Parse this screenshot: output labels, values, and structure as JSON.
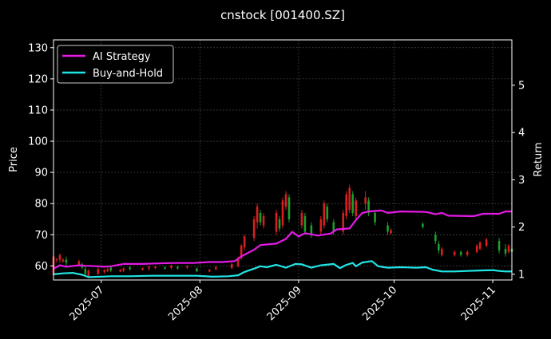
{
  "chart_data": {
    "type": "line",
    "title": "cnstock [001400.SZ]",
    "ylabel": "Price",
    "y2label": "Return",
    "ylim": [
      55.5,
      132.5
    ],
    "y2lim": [
      0.88,
      5.96
    ],
    "yticks": [
      60,
      70,
      80,
      90,
      100,
      110,
      120,
      130
    ],
    "y2ticks": [
      1,
      2,
      3,
      4,
      5
    ],
    "xlim": [
      "2025-06-16",
      "2025-11-07"
    ],
    "xticks": [
      "2025-07",
      "2025-08",
      "2025-09",
      "2025-10",
      "2025-11"
    ],
    "grid": true,
    "legend_position": "upper-left",
    "colors": {
      "background": "#000000",
      "ai_strategy": "#e619e6",
      "buy_and_hold": "#21e5e5",
      "candle_up": "#d62020",
      "candle_down": "#1f9e2c",
      "grid": "#555555"
    },
    "series": [
      {
        "name": "AI Strategy",
        "axis": "right",
        "points": [
          [
            "2025-06-16",
            1.12
          ],
          [
            "2025-06-18",
            1.19
          ],
          [
            "2025-06-20",
            1.16
          ],
          [
            "2025-06-24",
            1.19
          ],
          [
            "2025-06-26",
            1.18
          ],
          [
            "2025-06-30",
            1.17
          ],
          [
            "2025-07-02",
            1.16
          ],
          [
            "2025-07-04",
            1.17
          ],
          [
            "2025-07-08",
            1.22
          ],
          [
            "2025-07-14",
            1.22
          ],
          [
            "2025-07-18",
            1.23
          ],
          [
            "2025-07-24",
            1.24
          ],
          [
            "2025-07-30",
            1.24
          ],
          [
            "2025-08-04",
            1.26
          ],
          [
            "2025-08-08",
            1.26
          ],
          [
            "2025-08-12",
            1.28
          ],
          [
            "2025-08-14",
            1.38
          ],
          [
            "2025-08-18",
            1.52
          ],
          [
            "2025-08-20",
            1.62
          ],
          [
            "2025-08-25",
            1.65
          ],
          [
            "2025-08-28",
            1.75
          ],
          [
            "2025-08-30",
            1.9
          ],
          [
            "2025-09-01",
            1.8
          ],
          [
            "2025-09-03",
            1.87
          ],
          [
            "2025-09-07",
            1.82
          ],
          [
            "2025-09-11",
            1.86
          ],
          [
            "2025-09-13",
            1.95
          ],
          [
            "2025-09-17",
            1.97
          ],
          [
            "2025-09-19",
            2.15
          ],
          [
            "2025-09-21",
            2.3
          ],
          [
            "2025-09-23",
            2.33
          ],
          [
            "2025-09-27",
            2.35
          ],
          [
            "2025-09-29",
            2.3
          ],
          [
            "2025-10-03",
            2.33
          ],
          [
            "2025-10-11",
            2.32
          ],
          [
            "2025-10-14",
            2.27
          ],
          [
            "2025-10-16",
            2.3
          ],
          [
            "2025-10-18",
            2.24
          ],
          [
            "2025-10-26",
            2.23
          ],
          [
            "2025-10-29",
            2.28
          ],
          [
            "2025-11-03",
            2.28
          ],
          [
            "2025-11-05",
            2.33
          ],
          [
            "2025-11-07",
            2.33
          ]
        ]
      },
      {
        "name": "Buy-and-Hold",
        "axis": "right",
        "points": [
          [
            "2025-06-16",
            1.0
          ],
          [
            "2025-06-19",
            1.02
          ],
          [
            "2025-06-22",
            1.03
          ],
          [
            "2025-06-25",
            0.99
          ],
          [
            "2025-06-27",
            0.94
          ],
          [
            "2025-07-01",
            0.95
          ],
          [
            "2025-07-04",
            0.96
          ],
          [
            "2025-07-10",
            0.96
          ],
          [
            "2025-07-17",
            0.97
          ],
          [
            "2025-07-24",
            0.97
          ],
          [
            "2025-07-31",
            0.97
          ],
          [
            "2025-08-05",
            0.95
          ],
          [
            "2025-08-10",
            0.96
          ],
          [
            "2025-08-13",
            0.98
          ],
          [
            "2025-08-15",
            1.05
          ],
          [
            "2025-08-18",
            1.12
          ],
          [
            "2025-08-20",
            1.17
          ],
          [
            "2025-08-22",
            1.15
          ],
          [
            "2025-08-25",
            1.2
          ],
          [
            "2025-08-28",
            1.14
          ],
          [
            "2025-08-31",
            1.22
          ],
          [
            "2025-09-02",
            1.21
          ],
          [
            "2025-09-05",
            1.14
          ],
          [
            "2025-09-08",
            1.19
          ],
          [
            "2025-09-12",
            1.22
          ],
          [
            "2025-09-14",
            1.13
          ],
          [
            "2025-09-16",
            1.2
          ],
          [
            "2025-09-18",
            1.24
          ],
          [
            "2025-09-19",
            1.17
          ],
          [
            "2025-09-21",
            1.25
          ],
          [
            "2025-09-24",
            1.28
          ],
          [
            "2025-09-26",
            1.17
          ],
          [
            "2025-09-29",
            1.14
          ],
          [
            "2025-10-03",
            1.15
          ],
          [
            "2025-10-08",
            1.14
          ],
          [
            "2025-10-11",
            1.15
          ],
          [
            "2025-10-13",
            1.1
          ],
          [
            "2025-10-16",
            1.06
          ],
          [
            "2025-10-20",
            1.06
          ],
          [
            "2025-10-24",
            1.07
          ],
          [
            "2025-10-28",
            1.08
          ],
          [
            "2025-11-01",
            1.09
          ],
          [
            "2025-11-03",
            1.07
          ],
          [
            "2025-11-05",
            1.06
          ],
          [
            "2025-11-07",
            1.06
          ]
        ]
      }
    ],
    "candles": [
      [
        "2025-06-16",
        56,
        64,
        57,
        63
      ],
      [
        "2025-06-17",
        61,
        62.5,
        61.8,
        62.2
      ],
      [
        "2025-06-18",
        61,
        64,
        62,
        63.5
      ],
      [
        "2025-06-19",
        61,
        62.5,
        61.5,
        62
      ],
      [
        "2025-06-20",
        60,
        63,
        62,
        61
      ],
      [
        "2025-06-24",
        60,
        62,
        60.5,
        61.5
      ],
      [
        "2025-06-25",
        59,
        61,
        60.5,
        59.5
      ],
      [
        "2025-06-26",
        57,
        60,
        59,
        57.5
      ],
      [
        "2025-06-27",
        56,
        59,
        56.5,
        58.5
      ],
      [
        "2025-06-30",
        57,
        60,
        57.5,
        59
      ],
      [
        "2025-07-02",
        57.5,
        59,
        58,
        58.7
      ],
      [
        "2025-07-03",
        58,
        59.5,
        58.3,
        59
      ],
      [
        "2025-07-04",
        58,
        60,
        59.5,
        58.5
      ],
      [
        "2025-07-07",
        58,
        59,
        58.2,
        58.8
      ],
      [
        "2025-07-08",
        58,
        59.5,
        58.5,
        59.2
      ],
      [
        "2025-07-10",
        58.5,
        60,
        59.5,
        59
      ],
      [
        "2025-07-14",
        58.5,
        59.5,
        58.8,
        59.3
      ],
      [
        "2025-07-16",
        58.5,
        60,
        59.2,
        59.7
      ],
      [
        "2025-07-18",
        59,
        60,
        59.3,
        59.8
      ],
      [
        "2025-07-21",
        58.8,
        59.8,
        59.5,
        59.1
      ],
      [
        "2025-07-23",
        59,
        60.5,
        59.4,
        60.1
      ],
      [
        "2025-07-25",
        58.8,
        60,
        59.7,
        59.2
      ],
      [
        "2025-07-28",
        59,
        60.2,
        59.5,
        59.9
      ],
      [
        "2025-07-31",
        58,
        59.5,
        59.2,
        58.3
      ],
      [
        "2025-08-04",
        58,
        59,
        58.2,
        58.8
      ],
      [
        "2025-08-06",
        58.5,
        60,
        59,
        59.6
      ],
      [
        "2025-08-11",
        59,
        61,
        59.3,
        60.6
      ],
      [
        "2025-08-13",
        59.5,
        63,
        60,
        62.5
      ],
      [
        "2025-08-14",
        62,
        67,
        62.5,
        66.5
      ],
      [
        "2025-08-15",
        65,
        70,
        66,
        69.5
      ],
      [
        "2025-08-18",
        68,
        76,
        69,
        75
      ],
      [
        "2025-08-19",
        72,
        80,
        74,
        79
      ],
      [
        "2025-08-20",
        73,
        78,
        77,
        74
      ],
      [
        "2025-08-21",
        72,
        77,
        73,
        76
      ],
      [
        "2025-08-25",
        70,
        78,
        71,
        77
      ],
      [
        "2025-08-26",
        71,
        76,
        75,
        72
      ],
      [
        "2025-08-27",
        72,
        82,
        73,
        81
      ],
      [
        "2025-08-28",
        78,
        84,
        79,
        83
      ],
      [
        "2025-08-29",
        74,
        83,
        82,
        75
      ],
      [
        "2025-09-02",
        72,
        78,
        73,
        77
      ],
      [
        "2025-09-03",
        70,
        77,
        76,
        71
      ],
      [
        "2025-09-05",
        69,
        74,
        73,
        70
      ],
      [
        "2025-09-08",
        70,
        76,
        71,
        75
      ],
      [
        "2025-09-09",
        72,
        81,
        73,
        80
      ],
      [
        "2025-09-10",
        74,
        80,
        79,
        75
      ],
      [
        "2025-09-12",
        70,
        75,
        74,
        71
      ],
      [
        "2025-09-15",
        70,
        78,
        71,
        77
      ],
      [
        "2025-09-16",
        75,
        84,
        76,
        83
      ],
      [
        "2025-09-17",
        77,
        86,
        78,
        85
      ],
      [
        "2025-09-18",
        76,
        84,
        83,
        77
      ],
      [
        "2025-09-19",
        75,
        82,
        76,
        81
      ],
      [
        "2025-09-22",
        78,
        84,
        80,
        82
      ],
      [
        "2025-09-23",
        76,
        82,
        81,
        77
      ],
      [
        "2025-09-25",
        73,
        78,
        77,
        74
      ],
      [
        "2025-09-29",
        70,
        74,
        73,
        71
      ],
      [
        "2025-09-30",
        70,
        72,
        70.5,
        71.5
      ],
      [
        "2025-10-10",
        72,
        74,
        73.5,
        72.5
      ],
      [
        "2025-10-14",
        67,
        71,
        70,
        68
      ],
      [
        "2025-10-15",
        64,
        68,
        67,
        65
      ],
      [
        "2025-10-16",
        63,
        66,
        63.5,
        65.5
      ],
      [
        "2025-10-20",
        63,
        65,
        63.5,
        64.5
      ],
      [
        "2025-10-22",
        63,
        65,
        64.5,
        63.5
      ],
      [
        "2025-10-24",
        63,
        65,
        63.5,
        64.5
      ],
      [
        "2025-10-27",
        64,
        67,
        64.5,
        66.5
      ],
      [
        "2025-10-28",
        65,
        68,
        65.5,
        67.5
      ],
      [
        "2025-10-30",
        66,
        69,
        66.5,
        68.5
      ],
      [
        "2025-11-03",
        64,
        69,
        68,
        65
      ],
      [
        "2025-11-05",
        63,
        67,
        65.5,
        64
      ],
      [
        "2025-11-06",
        64,
        67,
        64.5,
        66.5
      ],
      [
        "2025-11-07",
        64,
        66,
        65.5,
        64.5
      ]
    ]
  }
}
